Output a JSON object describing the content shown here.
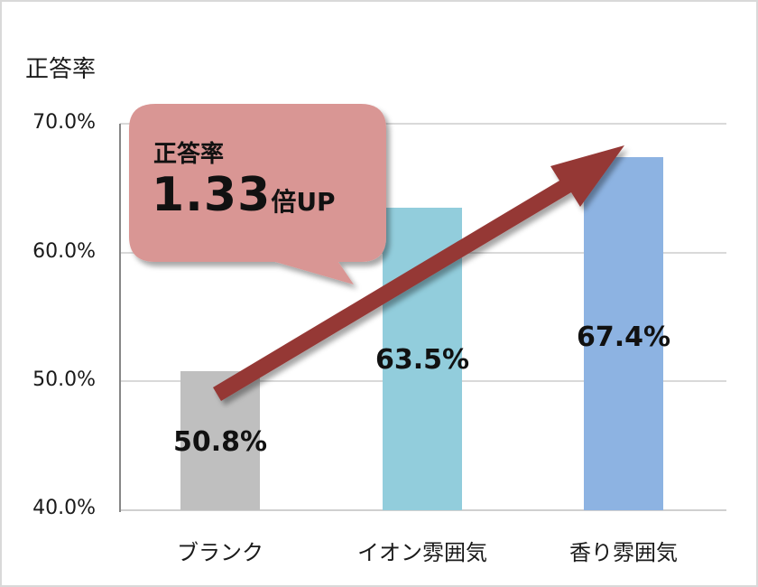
{
  "chart_data": {
    "type": "bar",
    "title": "",
    "ylabel": "正答率",
    "xlabel": "",
    "categories": [
      "ブランク",
      "イオン雰囲気",
      "香り雰囲気"
    ],
    "values": [
      50.8,
      63.5,
      67.4
    ],
    "value_labels": [
      "50.8%",
      "63.5%",
      "67.4%"
    ],
    "ylim": [
      40.0,
      70.0
    ],
    "yticks": [
      "70.0%",
      "60.0%",
      "50.0%",
      "40.0%"
    ],
    "grid": true,
    "legend": null,
    "colors": [
      "#bfbfbf",
      "#92cddc",
      "#8db3e2"
    ],
    "annotations": {
      "callout_line1": "正答率",
      "callout_number": "1.33",
      "callout_suffix": "倍UP",
      "callout_color": "#d99694",
      "arrow_color": "#953735",
      "arrow_from": "ブランク",
      "arrow_to": "香り雰囲気"
    }
  }
}
